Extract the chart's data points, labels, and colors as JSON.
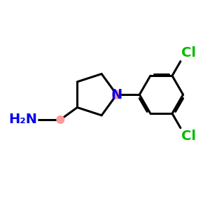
{
  "background_color": "#ffffff",
  "bond_color": "#000000",
  "bond_width": 2.2,
  "N_circle_color": "#ff9999",
  "CH2_circle_color": "#ff9999",
  "N_text_color": "#0000ee",
  "Cl_text_color": "#00bb00",
  "NH2_text_color": "#0000ee",
  "text_fontsize": 14,
  "figsize": [
    3.0,
    3.0
  ],
  "dpi": 100,
  "xlim": [
    0,
    10
  ],
  "ylim": [
    0,
    10
  ]
}
